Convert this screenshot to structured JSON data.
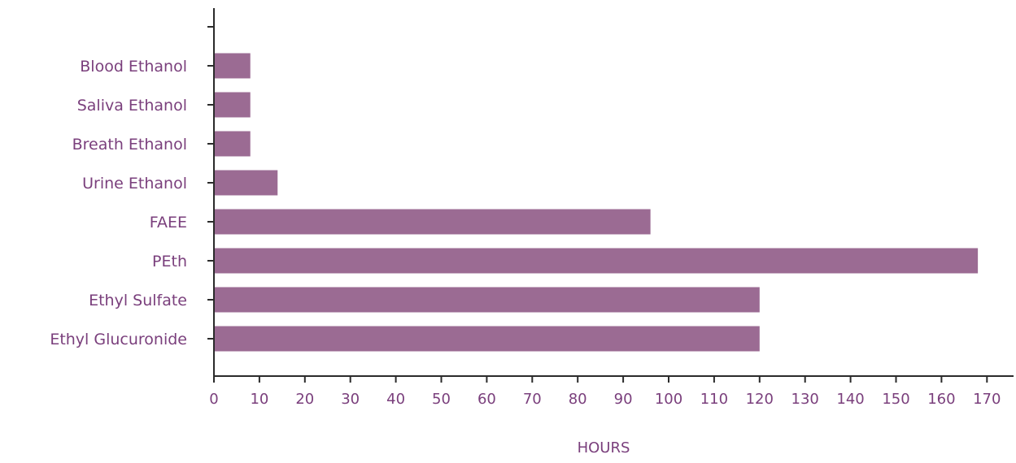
{
  "chart_data": {
    "type": "bar",
    "orientation": "horizontal",
    "categories": [
      "Blood Ethanol",
      "Saliva Ethanol",
      "Breath Ethanol",
      "Urine Ethanol",
      "FAEE",
      "PEth",
      "Ethyl Sulfate",
      "Ethyl Glucuronide"
    ],
    "values": [
      8,
      8,
      8,
      14,
      96,
      168,
      120,
      120
    ],
    "xlabel": "HOURS",
    "ylabel": "",
    "title": "",
    "xlim": [
      0,
      175
    ],
    "xticks": [
      "0",
      "10",
      "20",
      "30",
      "40",
      "50",
      "60",
      "70",
      "80",
      "90",
      "100",
      "110",
      "120",
      "130",
      "140",
      "150",
      "160",
      "170"
    ],
    "grid": false,
    "legend": "none"
  },
  "colors": {
    "bar": "#9b6b93",
    "label": "#7a3f7c",
    "axis": "#2b2b2b"
  }
}
